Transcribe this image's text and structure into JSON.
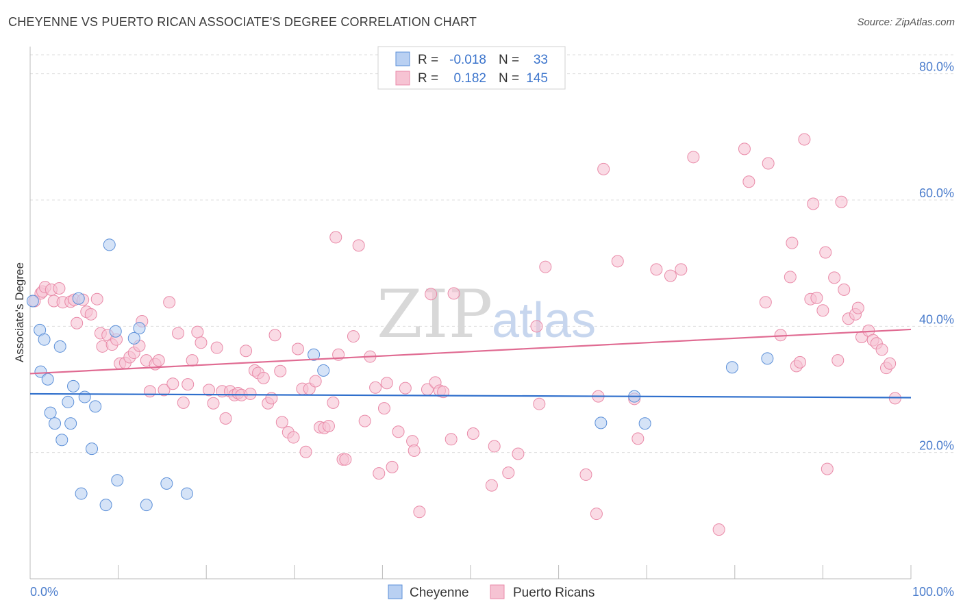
{
  "title": "CHEYENNE VS PUERTO RICAN ASSOCIATE'S DEGREE CORRELATION CHART",
  "source": "Source: ZipAtlas.com",
  "watermark": {
    "part1": "ZIP",
    "part2": "atlas"
  },
  "legend": {
    "rows": [
      {
        "r_label": "R =",
        "r_value": "-0.018",
        "n_label": "N =",
        "n_value": "33"
      },
      {
        "r_label": "R =",
        "r_value": "0.182",
        "n_label": "N =",
        "n_value": "145"
      }
    ]
  },
  "bottom_legend": [
    "Cheyenne",
    "Puerto Ricans"
  ],
  "chart_data": {
    "type": "scatter",
    "title": "CHEYENNE VS PUERTO RICAN ASSOCIATE'S DEGREE CORRELATION CHART",
    "xlabel": "",
    "ylabel": "Associate's Degree",
    "xlim": [
      0,
      100
    ],
    "ylim": [
      0,
      83
    ],
    "x_tick_labels": [
      "0.0%",
      "100.0%"
    ],
    "y_ticks": [
      20,
      40,
      60,
      80
    ],
    "y_tick_labels": [
      "20.0%",
      "40.0%",
      "60.0%",
      "80.0%"
    ],
    "colors": {
      "cheyenne": "#5b8fd8",
      "cheyenne_fill": "#b9d0f2",
      "puerto": "#e98aa8",
      "puerto_fill": "#f6c3d3",
      "cheyenne_line": "#2f6fcc",
      "puerto_line": "#e06b92"
    },
    "series": [
      {
        "name": "Cheyenne",
        "r": -0.018,
        "n": 33,
        "trend": [
          [
            0,
            29.3
          ],
          [
            100,
            28.7
          ]
        ],
        "points": [
          [
            0.3,
            44
          ],
          [
            1.2,
            32.8
          ],
          [
            1.1,
            39.4
          ],
          [
            1.6,
            37.9
          ],
          [
            2.0,
            31.6
          ],
          [
            2.3,
            26.3
          ],
          [
            2.8,
            24.6
          ],
          [
            3.4,
            36.8
          ],
          [
            3.6,
            22
          ],
          [
            4.3,
            28
          ],
          [
            4.6,
            24.6
          ],
          [
            4.9,
            30.5
          ],
          [
            5.5,
            44.4
          ],
          [
            5.8,
            13.5
          ],
          [
            6.2,
            28.8
          ],
          [
            7.0,
            20.6
          ],
          [
            7.4,
            27.3
          ],
          [
            8.6,
            11.7
          ],
          [
            9.0,
            52.9
          ],
          [
            9.7,
            39.2
          ],
          [
            9.9,
            15.6
          ],
          [
            11.8,
            38.1
          ],
          [
            12.4,
            39.7
          ],
          [
            13.2,
            11.7
          ],
          [
            15.5,
            15.1
          ],
          [
            17.8,
            13.5
          ],
          [
            33.3,
            33
          ],
          [
            32.2,
            35.5
          ],
          [
            64.8,
            24.7
          ],
          [
            68.6,
            28.9
          ],
          [
            69.8,
            24.6
          ],
          [
            79.7,
            33.5
          ],
          [
            83.7,
            34.9
          ]
        ]
      },
      {
        "name": "Puerto Ricans",
        "r": 0.182,
        "n": 145,
        "trend": [
          [
            0,
            32.5
          ],
          [
            100,
            39.5
          ]
        ],
        "points": [
          [
            0.5,
            44
          ],
          [
            1.2,
            45.2
          ],
          [
            1.4,
            45.5
          ],
          [
            1.7,
            46.2
          ],
          [
            2.4,
            45.8
          ],
          [
            2.7,
            44
          ],
          [
            3.3,
            46
          ],
          [
            3.7,
            43.8
          ],
          [
            4.6,
            43.9
          ],
          [
            5.0,
            44.2
          ],
          [
            5.3,
            40.5
          ],
          [
            6.0,
            44.2
          ],
          [
            6.4,
            42.3
          ],
          [
            6.9,
            41.9
          ],
          [
            7.6,
            44.3
          ],
          [
            8.0,
            38.9
          ],
          [
            8.2,
            36.8
          ],
          [
            8.8,
            38.6
          ],
          [
            9.3,
            37.1
          ],
          [
            9.8,
            37.9
          ],
          [
            10.2,
            34.1
          ],
          [
            10.8,
            34.2
          ],
          [
            11.3,
            35.1
          ],
          [
            11.8,
            35.8
          ],
          [
            12.4,
            36.9
          ],
          [
            12.7,
            40.8
          ],
          [
            13.2,
            34.6
          ],
          [
            13.6,
            29.7
          ],
          [
            14.2,
            34
          ],
          [
            14.6,
            34.6
          ],
          [
            15.2,
            29.9
          ],
          [
            15.8,
            43.8
          ],
          [
            16.2,
            30.9
          ],
          [
            16.8,
            38.9
          ],
          [
            17.4,
            27.9
          ],
          [
            17.9,
            30.8
          ],
          [
            18.4,
            34.6
          ],
          [
            19.0,
            39.1
          ],
          [
            19.4,
            37.4
          ],
          [
            20.3,
            29.9
          ],
          [
            20.8,
            27.8
          ],
          [
            21.2,
            36.6
          ],
          [
            21.8,
            29.7
          ],
          [
            22.2,
            25.4
          ],
          [
            22.7,
            29.7
          ],
          [
            23.2,
            29.1
          ],
          [
            23.6,
            29.4
          ],
          [
            24.0,
            29.1
          ],
          [
            24.5,
            36.1
          ],
          [
            25.0,
            29.3
          ],
          [
            25.5,
            33
          ],
          [
            25.9,
            32.6
          ],
          [
            26.5,
            31.8
          ],
          [
            27.0,
            27.8
          ],
          [
            27.4,
            28.6
          ],
          [
            27.8,
            38.6
          ],
          [
            28.4,
            32.9
          ],
          [
            28.6,
            24.8
          ],
          [
            29.3,
            23.2
          ],
          [
            29.9,
            22.4
          ],
          [
            30.4,
            36.4
          ],
          [
            30.9,
            30.1
          ],
          [
            31.3,
            20.1
          ],
          [
            31.7,
            30.1
          ],
          [
            32.4,
            31.3
          ],
          [
            32.9,
            24
          ],
          [
            33.4,
            23.9
          ],
          [
            33.9,
            24.2
          ],
          [
            34.4,
            27.9
          ],
          [
            34.7,
            54.1
          ],
          [
            35.0,
            35.5
          ],
          [
            35.5,
            18.9
          ],
          [
            35.8,
            18.9
          ],
          [
            36.7,
            38.4
          ],
          [
            37.3,
            52.8
          ],
          [
            38.0,
            25
          ],
          [
            38.6,
            35.2
          ],
          [
            39.2,
            30.3
          ],
          [
            39.6,
            16.7
          ],
          [
            40.2,
            27
          ],
          [
            40.5,
            31
          ],
          [
            41.1,
            17.7
          ],
          [
            41.8,
            23.3
          ],
          [
            42.6,
            30.2
          ],
          [
            43.4,
            21.8
          ],
          [
            43.6,
            20.3
          ],
          [
            44.2,
            10.6
          ],
          [
            45.1,
            30
          ],
          [
            45.5,
            45.1
          ],
          [
            46.0,
            31.1
          ],
          [
            46.5,
            29.8
          ],
          [
            46.9,
            29.6
          ],
          [
            47.8,
            22.1
          ],
          [
            48.1,
            45.2
          ],
          [
            50.3,
            23
          ],
          [
            52.4,
            14.8
          ],
          [
            52.7,
            21
          ],
          [
            54.3,
            16.8
          ],
          [
            55.4,
            19.8
          ],
          [
            57.5,
            40
          ],
          [
            57.8,
            27.7
          ],
          [
            58.5,
            49.4
          ],
          [
            63.1,
            16.5
          ],
          [
            64.3,
            10.3
          ],
          [
            64.5,
            28.9
          ],
          [
            65.1,
            64.9
          ],
          [
            66.7,
            50.3
          ],
          [
            68.6,
            28.5
          ],
          [
            69.0,
            22.2
          ],
          [
            71.1,
            49
          ],
          [
            72.7,
            48
          ],
          [
            73.9,
            49
          ],
          [
            75.3,
            66.8
          ],
          [
            78.2,
            7.8
          ],
          [
            81.1,
            68.1
          ],
          [
            81.6,
            62.9
          ],
          [
            83.5,
            43.8
          ],
          [
            83.8,
            65.8
          ],
          [
            85.2,
            38.6
          ],
          [
            86.3,
            47.8
          ],
          [
            86.5,
            53.2
          ],
          [
            87.0,
            33.7
          ],
          [
            87.4,
            34.3
          ],
          [
            87.9,
            69.6
          ],
          [
            88.6,
            44.3
          ],
          [
            88.9,
            59.4
          ],
          [
            89.3,
            44.5
          ],
          [
            90.0,
            42.5
          ],
          [
            90.3,
            51.7
          ],
          [
            90.5,
            17.4
          ],
          [
            91.3,
            47.7
          ],
          [
            91.7,
            34.6
          ],
          [
            92.1,
            59.7
          ],
          [
            92.4,
            45.8
          ],
          [
            92.9,
            41.2
          ],
          [
            93.7,
            41.9
          ],
          [
            94.0,
            42.9
          ],
          [
            94.4,
            38.3
          ],
          [
            95.2,
            39.3
          ],
          [
            95.7,
            37.8
          ],
          [
            96.1,
            37.3
          ],
          [
            96.7,
            36.3
          ],
          [
            97.2,
            33.4
          ],
          [
            97.6,
            34.1
          ],
          [
            98.2,
            28.6
          ]
        ]
      }
    ]
  }
}
